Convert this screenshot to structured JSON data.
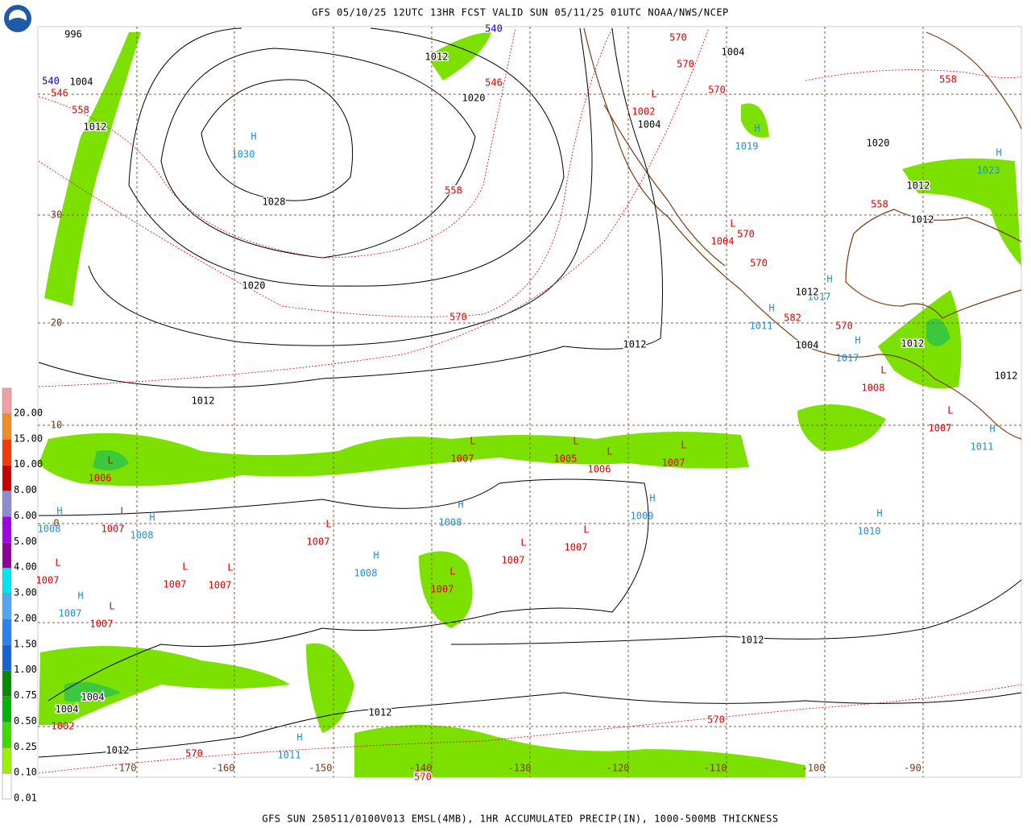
{
  "header": {
    "title": "GFS 05/10/25 12UTC 13HR FCST VALID SUN 05/11/25 01UTC NOAA/NWS/NCEP"
  },
  "footer": {
    "caption": "GFS SUN 250511/0100V013 EMSL(4MB), 1HR ACCUMULATED PRECIP(IN), 1000-500MB THICKNESS"
  },
  "legend": {
    "items": [
      {
        "label": "0.01",
        "color": "#ffffff"
      },
      {
        "label": "0.10",
        "color": "#9cf000"
      },
      {
        "label": "0.25",
        "color": "#3cdc00"
      },
      {
        "label": "0.50",
        "color": "#00b400"
      },
      {
        "label": "0.75",
        "color": "#008c00"
      },
      {
        "label": "1.00",
        "color": "#1464d2"
      },
      {
        "label": "1.50",
        "color": "#2882f0"
      },
      {
        "label": "2.00",
        "color": "#50a5f5"
      },
      {
        "label": "3.00",
        "color": "#00e6f0"
      },
      {
        "label": "4.00",
        "color": "#8c0096"
      },
      {
        "label": "5.00",
        "color": "#a000e6"
      },
      {
        "label": "6.00",
        "color": "#8c8cd2"
      },
      {
        "label": "8.00",
        "color": "#c80000"
      },
      {
        "label": "10.00",
        "color": "#f03c00"
      },
      {
        "label": "15.00",
        "color": "#f08c28"
      },
      {
        "label": "20.00",
        "color": "#f0a0a0"
      }
    ]
  },
  "latitude_labels": [
    "30",
    "20",
    "10",
    "0"
  ],
  "longitude_labels": [
    "-170",
    "-160",
    "-150",
    "-140",
    "-130",
    "-120",
    "-110",
    "-100",
    "-90"
  ],
  "pressure_centers": [
    {
      "symbol": "H",
      "value": "1030"
    },
    {
      "symbol": "L",
      "value": "1002"
    },
    {
      "symbol": "H",
      "value": "1019"
    },
    {
      "symbol": "H",
      "value": "1023"
    },
    {
      "symbol": "L",
      "value": "1004"
    },
    {
      "symbol": "H",
      "value": "1017"
    },
    {
      "symbol": "H",
      "value": "1011"
    },
    {
      "symbol": "H",
      "value": "1017"
    },
    {
      "symbol": "L",
      "value": "1008"
    },
    {
      "symbol": "L",
      "value": "1007"
    },
    {
      "symbol": "H",
      "value": "1011"
    },
    {
      "symbol": "L",
      "value": "1007"
    },
    {
      "symbol": "L",
      "value": "1005"
    },
    {
      "symbol": "L",
      "value": "1006"
    },
    {
      "symbol": "L",
      "value": "1007"
    },
    {
      "symbol": "L",
      "value": "1006"
    },
    {
      "symbol": "H",
      "value": "1008"
    },
    {
      "symbol": "H",
      "value": "1009"
    },
    {
      "symbol": "H",
      "value": "1010"
    },
    {
      "symbol": "H",
      "value": "1008"
    },
    {
      "symbol": "L",
      "value": "1007"
    },
    {
      "symbol": "H",
      "value": "1008"
    },
    {
      "symbol": "L",
      "value": "1007"
    },
    {
      "symbol": "L",
      "value": "1007"
    },
    {
      "symbol": "L",
      "value": "1007"
    },
    {
      "symbol": "H",
      "value": "1008"
    },
    {
      "symbol": "L",
      "value": "1007"
    },
    {
      "symbol": "L",
      "value": "1007"
    },
    {
      "symbol": "L",
      "value": "1007"
    },
    {
      "symbol": "L",
      "value": "1007"
    },
    {
      "symbol": "H",
      "value": "1007"
    },
    {
      "symbol": "L",
      "value": "1007"
    },
    {
      "symbol": "L",
      "value": "1002"
    },
    {
      "symbol": "H",
      "value": "1011"
    }
  ],
  "isobar_labels": [
    "996",
    "1004",
    "1012",
    "1012",
    "1020",
    "1028",
    "1020",
    "1012",
    "1012",
    "1012",
    "1012",
    "1012",
    "1004",
    "1004",
    "1004",
    "1004",
    "1020",
    "1012",
    "1012",
    "1012",
    "1012",
    "1012",
    "1004"
  ],
  "thickness_labels": [
    "570",
    "570",
    "570",
    "546",
    "558",
    "558",
    "546",
    "570",
    "570",
    "570",
    "558",
    "558",
    "582",
    "570",
    "570",
    "570",
    "570"
  ],
  "cold_thickness_labels": [
    "540",
    "540"
  ]
}
